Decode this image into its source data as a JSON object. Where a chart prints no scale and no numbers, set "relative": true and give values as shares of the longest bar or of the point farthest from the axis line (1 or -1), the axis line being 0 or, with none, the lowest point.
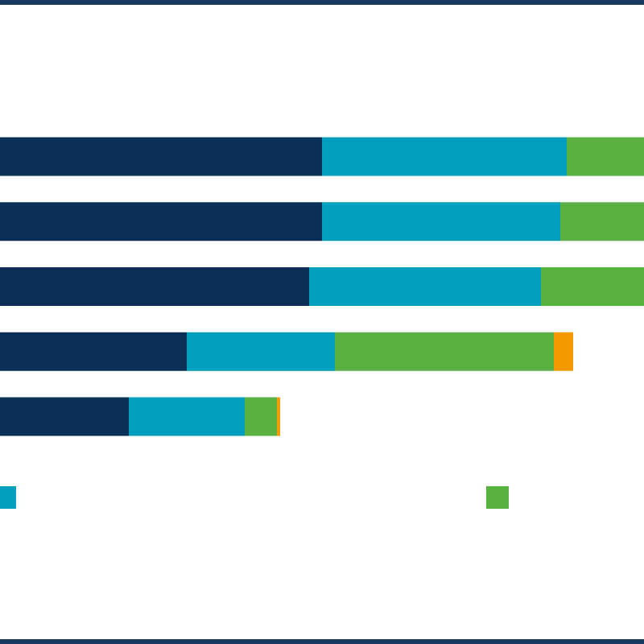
{
  "chart_data": {
    "type": "bar",
    "orientation": "horizontal",
    "stacked": true,
    "relative": true,
    "categories": [
      null,
      null,
      null,
      null,
      null
    ],
    "series": [
      {
        "color": "#0a2f55",
        "values": [
          0.5,
          0.5,
          0.48,
          0.29,
          0.2
        ]
      },
      {
        "color": "#019fbf",
        "values": [
          0.38,
          0.37,
          0.36,
          0.23,
          0.18
        ]
      },
      {
        "color": "#59b140",
        "values": [
          0.12,
          0.13,
          0.16,
          0.34,
          0.05
        ]
      },
      {
        "color": "#f59b00",
        "values": [
          null,
          null,
          null,
          0.03,
          0.005
        ]
      }
    ]
  }
}
